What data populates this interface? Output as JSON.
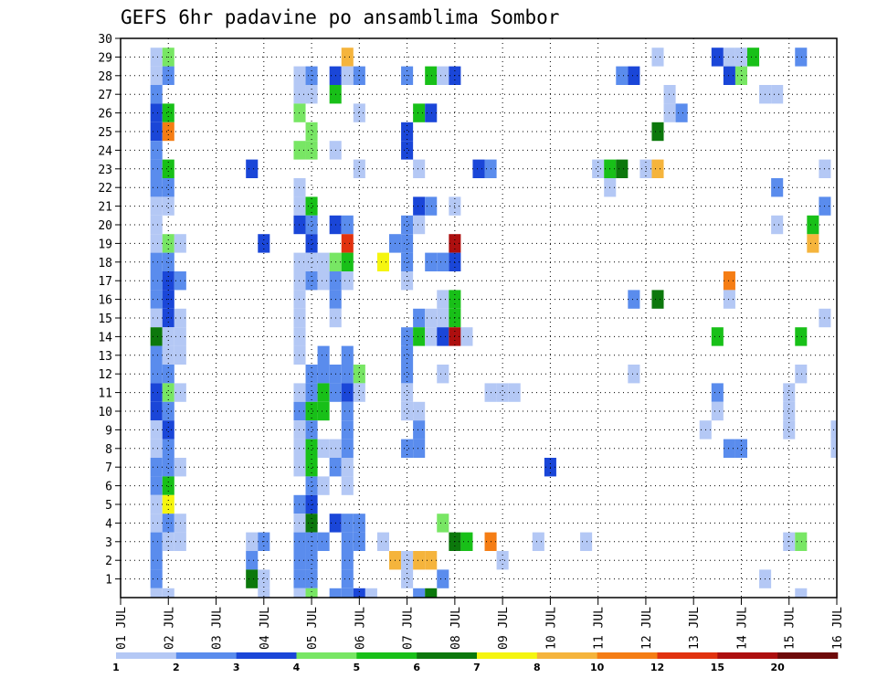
{
  "chart_data": {
    "type": "heatmap",
    "title": "GEFS 6hr padavine po ansamblima Sombor",
    "xlabel": "",
    "ylabel": "",
    "x_tick_labels": [
      "01 JUL",
      "02 JUL",
      "03 JUL",
      "04 JUL",
      "05 JUL",
      "06 JUL",
      "07 JUL",
      "08 JUL",
      "09 JUL",
      "10 JUL",
      "11 JUL",
      "12 JUL",
      "13 JUL",
      "14 JUL",
      "15 JUL",
      "16 JUL"
    ],
    "y_tick_labels": [
      "1",
      "2",
      "3",
      "4",
      "5",
      "6",
      "7",
      "8",
      "9",
      "10",
      "11",
      "12",
      "13",
      "14",
      "15",
      "16",
      "17",
      "18",
      "19",
      "20",
      "21",
      "22",
      "23",
      "24",
      "25",
      "26",
      "27",
      "28",
      "29",
      "30"
    ],
    "xlim": [
      0,
      60
    ],
    "ylim": [
      0,
      30
    ],
    "x_unit": "6-hour steps from 01 JUL 00z",
    "grid": true,
    "legend": {
      "placement": "bottom",
      "labels": [
        "1",
        "2",
        "3",
        "4",
        "5",
        "6",
        "7",
        "8",
        "10",
        "12",
        "15",
        "20"
      ],
      "colors": [
        "#b4c8f5",
        "#5a8ced",
        "#1a46d8",
        "#78e664",
        "#18c018",
        "#0c780c",
        "#f5f510",
        "#f5b43c",
        "#f57d14",
        "#e1320f",
        "#ad0f0f",
        "#6e0a0a"
      ]
    },
    "cells": [
      [
        3,
        29,
        1
      ],
      [
        3,
        28,
        1
      ],
      [
        3,
        27,
        2
      ],
      [
        3,
        26,
        3
      ],
      [
        3,
        25,
        3
      ],
      [
        3,
        24,
        2
      ],
      [
        3,
        23,
        2
      ],
      [
        3,
        22,
        2
      ],
      [
        3,
        21,
        1
      ],
      [
        3,
        20,
        1
      ],
      [
        3,
        19,
        1
      ],
      [
        3,
        18,
        2
      ],
      [
        3,
        17,
        2
      ],
      [
        3,
        16,
        2
      ],
      [
        3,
        15,
        1
      ],
      [
        3,
        14,
        6
      ],
      [
        3,
        13,
        2
      ],
      [
        3,
        12,
        2
      ],
      [
        3,
        11,
        3
      ],
      [
        3,
        10,
        3
      ],
      [
        3,
        9,
        1
      ],
      [
        3,
        8,
        1
      ],
      [
        3,
        7,
        2
      ],
      [
        3,
        6,
        2
      ],
      [
        3,
        5,
        1
      ],
      [
        3,
        4,
        1
      ],
      [
        3,
        3,
        2
      ],
      [
        3,
        2,
        2
      ],
      [
        3,
        1,
        2
      ],
      [
        3,
        0,
        1
      ],
      [
        4,
        29,
        4
      ],
      [
        4,
        28,
        2
      ],
      [
        4,
        26,
        5
      ],
      [
        4,
        25,
        9
      ],
      [
        4,
        23,
        5
      ],
      [
        4,
        22,
        2
      ],
      [
        4,
        21,
        1
      ],
      [
        4,
        19,
        4
      ],
      [
        4,
        18,
        2
      ],
      [
        4,
        17,
        3
      ],
      [
        4,
        16,
        3
      ],
      [
        4,
        15,
        3
      ],
      [
        4,
        14,
        1
      ],
      [
        4,
        13,
        1
      ],
      [
        4,
        12,
        2
      ],
      [
        4,
        11,
        4
      ],
      [
        4,
        10,
        2
      ],
      [
        4,
        9,
        3
      ],
      [
        4,
        8,
        2
      ],
      [
        4,
        7,
        2
      ],
      [
        4,
        6,
        5
      ],
      [
        4,
        5,
        7
      ],
      [
        4,
        4,
        2
      ],
      [
        4,
        3,
        1
      ],
      [
        4,
        0,
        1
      ],
      [
        5,
        19,
        1
      ],
      [
        5,
        17,
        2
      ],
      [
        5,
        15,
        1
      ],
      [
        5,
        14,
        1
      ],
      [
        5,
        13,
        1
      ],
      [
        5,
        11,
        1
      ],
      [
        5,
        7,
        1
      ],
      [
        5,
        4,
        1
      ],
      [
        5,
        3,
        1
      ],
      [
        11,
        23,
        3
      ],
      [
        11,
        3,
        1
      ],
      [
        11,
        2,
        2
      ],
      [
        11,
        1,
        6
      ],
      [
        12,
        19,
        3
      ],
      [
        12,
        3,
        2
      ],
      [
        12,
        1,
        1
      ],
      [
        12,
        0,
        1
      ],
      [
        15,
        28,
        1
      ],
      [
        15,
        27,
        1
      ],
      [
        15,
        26,
        4
      ],
      [
        15,
        24,
        4
      ],
      [
        15,
        22,
        1
      ],
      [
        15,
        21,
        1
      ],
      [
        15,
        20,
        3
      ],
      [
        15,
        18,
        1
      ],
      [
        15,
        17,
        1
      ],
      [
        15,
        16,
        1
      ],
      [
        15,
        15,
        1
      ],
      [
        15,
        14,
        1
      ],
      [
        15,
        13,
        1
      ],
      [
        15,
        11,
        1
      ],
      [
        15,
        10,
        2
      ],
      [
        15,
        9,
        1
      ],
      [
        15,
        8,
        1
      ],
      [
        15,
        7,
        1
      ],
      [
        15,
        5,
        2
      ],
      [
        15,
        4,
        1
      ],
      [
        15,
        3,
        2
      ],
      [
        15,
        2,
        2
      ],
      [
        15,
        1,
        2
      ],
      [
        15,
        0,
        1
      ],
      [
        16,
        28,
        2
      ],
      [
        16,
        27,
        1
      ],
      [
        16,
        25,
        4
      ],
      [
        16,
        24,
        4
      ],
      [
        16,
        21,
        5
      ],
      [
        16,
        20,
        2
      ],
      [
        16,
        19,
        3
      ],
      [
        16,
        18,
        1
      ],
      [
        16,
        17,
        2
      ],
      [
        16,
        12,
        2
      ],
      [
        16,
        11,
        2
      ],
      [
        16,
        10,
        5
      ],
      [
        16,
        9,
        2
      ],
      [
        16,
        8,
        5
      ],
      [
        16,
        7,
        5
      ],
      [
        16,
        6,
        2
      ],
      [
        16,
        5,
        3
      ],
      [
        16,
        4,
        6
      ],
      [
        16,
        3,
        2
      ],
      [
        16,
        2,
        2
      ],
      [
        16,
        1,
        2
      ],
      [
        16,
        0,
        4
      ],
      [
        17,
        18,
        1
      ],
      [
        17,
        17,
        1
      ],
      [
        17,
        13,
        2
      ],
      [
        17,
        12,
        2
      ],
      [
        17,
        11,
        5
      ],
      [
        17,
        10,
        5
      ],
      [
        17,
        8,
        1
      ],
      [
        17,
        6,
        1
      ],
      [
        17,
        3,
        2
      ],
      [
        18,
        28,
        3
      ],
      [
        18,
        27,
        5
      ],
      [
        18,
        24,
        1
      ],
      [
        18,
        20,
        3
      ],
      [
        18,
        18,
        4
      ],
      [
        18,
        17,
        2
      ],
      [
        18,
        16,
        2
      ],
      [
        18,
        15,
        1
      ],
      [
        18,
        12,
        2
      ],
      [
        18,
        11,
        2
      ],
      [
        18,
        8,
        1
      ],
      [
        18,
        7,
        2
      ],
      [
        18,
        4,
        3
      ],
      [
        18,
        0,
        2
      ],
      [
        19,
        29,
        8
      ],
      [
        19,
        28,
        1
      ],
      [
        19,
        20,
        2
      ],
      [
        19,
        19,
        10
      ],
      [
        19,
        18,
        5
      ],
      [
        19,
        17,
        1
      ],
      [
        19,
        13,
        2
      ],
      [
        19,
        12,
        2
      ],
      [
        19,
        11,
        3
      ],
      [
        19,
        10,
        2
      ],
      [
        19,
        9,
        2
      ],
      [
        19,
        8,
        2
      ],
      [
        19,
        7,
        1
      ],
      [
        19,
        6,
        1
      ],
      [
        19,
        4,
        2
      ],
      [
        19,
        3,
        2
      ],
      [
        19,
        2,
        2
      ],
      [
        19,
        1,
        2
      ],
      [
        19,
        0,
        2
      ],
      [
        20,
        28,
        2
      ],
      [
        20,
        26,
        1
      ],
      [
        20,
        23,
        1
      ],
      [
        20,
        12,
        4
      ],
      [
        20,
        11,
        1
      ],
      [
        20,
        4,
        2
      ],
      [
        20,
        3,
        2
      ],
      [
        20,
        0,
        3
      ],
      [
        21,
        0,
        1
      ],
      [
        22,
        18,
        7
      ],
      [
        22,
        3,
        1
      ],
      [
        23,
        19,
        2
      ],
      [
        23,
        2,
        8
      ],
      [
        24,
        28,
        2
      ],
      [
        24,
        25,
        3
      ],
      [
        24,
        24,
        3
      ],
      [
        24,
        20,
        2
      ],
      [
        24,
        19,
        2
      ],
      [
        24,
        18,
        2
      ],
      [
        24,
        17,
        1
      ],
      [
        24,
        14,
        2
      ],
      [
        24,
        13,
        2
      ],
      [
        24,
        12,
        2
      ],
      [
        24,
        11,
        1
      ],
      [
        24,
        10,
        1
      ],
      [
        24,
        8,
        2
      ],
      [
        24,
        2,
        1
      ],
      [
        24,
        1,
        1
      ],
      [
        25,
        26,
        5
      ],
      [
        25,
        23,
        1
      ],
      [
        25,
        21,
        3
      ],
      [
        25,
        20,
        1
      ],
      [
        25,
        15,
        2
      ],
      [
        25,
        14,
        5
      ],
      [
        25,
        10,
        1
      ],
      [
        25,
        9,
        2
      ],
      [
        25,
        8,
        2
      ],
      [
        25,
        2,
        8
      ],
      [
        25,
        0,
        2
      ],
      [
        26,
        28,
        5
      ],
      [
        26,
        26,
        3
      ],
      [
        26,
        21,
        2
      ],
      [
        26,
        18,
        2
      ],
      [
        26,
        15,
        1
      ],
      [
        26,
        14,
        1
      ],
      [
        26,
        2,
        8
      ],
      [
        26,
        0,
        6
      ],
      [
        27,
        28,
        1
      ],
      [
        27,
        18,
        2
      ],
      [
        27,
        16,
        1
      ],
      [
        27,
        15,
        1
      ],
      [
        27,
        14,
        3
      ],
      [
        27,
        12,
        1
      ],
      [
        27,
        4,
        4
      ],
      [
        27,
        1,
        2
      ],
      [
        28,
        28,
        3
      ],
      [
        28,
        21,
        1
      ],
      [
        28,
        19,
        11
      ],
      [
        28,
        18,
        3
      ],
      [
        28,
        16,
        5
      ],
      [
        28,
        15,
        5
      ],
      [
        28,
        14,
        11
      ],
      [
        28,
        3,
        6
      ],
      [
        29,
        14,
        1
      ],
      [
        29,
        3,
        5
      ],
      [
        30,
        23,
        3
      ],
      [
        31,
        23,
        2
      ],
      [
        31,
        11,
        1
      ],
      [
        31,
        3,
        9
      ],
      [
        32,
        11,
        1
      ],
      [
        32,
        2,
        1
      ],
      [
        33,
        11,
        1
      ],
      [
        35,
        3,
        1
      ],
      [
        36,
        7,
        3
      ],
      [
        39,
        3,
        1
      ],
      [
        40,
        23,
        1
      ],
      [
        41,
        22,
        1
      ],
      [
        41,
        23,
        5
      ],
      [
        42,
        23,
        6
      ],
      [
        42,
        28,
        2
      ],
      [
        43,
        28,
        3
      ],
      [
        43,
        16,
        2
      ],
      [
        43,
        12,
        1
      ],
      [
        44,
        23,
        1
      ],
      [
        45,
        29,
        1
      ],
      [
        45,
        25,
        6
      ],
      [
        45,
        23,
        8
      ],
      [
        45,
        16,
        6
      ],
      [
        46,
        27,
        1
      ],
      [
        46,
        26,
        1
      ],
      [
        47,
        26,
        2
      ],
      [
        49,
        9,
        1
      ],
      [
        50,
        29,
        3
      ],
      [
        50,
        14,
        5
      ],
      [
        50,
        11,
        2
      ],
      [
        50,
        10,
        1
      ],
      [
        51,
        29,
        1
      ],
      [
        51,
        28,
        3
      ],
      [
        51,
        17,
        9
      ],
      [
        51,
        16,
        1
      ],
      [
        51,
        8,
        2
      ],
      [
        52,
        29,
        1
      ],
      [
        52,
        28,
        4
      ],
      [
        52,
        8,
        2
      ],
      [
        53,
        29,
        5
      ],
      [
        54,
        1,
        1
      ],
      [
        54,
        27,
        1
      ],
      [
        55,
        20,
        1
      ],
      [
        55,
        22,
        2
      ],
      [
        55,
        27,
        1
      ],
      [
        56,
        9,
        1
      ],
      [
        56,
        10,
        1
      ],
      [
        56,
        11,
        1
      ],
      [
        56,
        3,
        1
      ],
      [
        57,
        0,
        1
      ],
      [
        57,
        3,
        4
      ],
      [
        57,
        12,
        1
      ],
      [
        57,
        14,
        5
      ],
      [
        57,
        29,
        2
      ],
      [
        58,
        19,
        8
      ],
      [
        58,
        20,
        5
      ],
      [
        59,
        15,
        1
      ],
      [
        59,
        21,
        2
      ],
      [
        59,
        23,
        1
      ],
      [
        60,
        8,
        1
      ],
      [
        60,
        9,
        1
      ]
    ]
  }
}
